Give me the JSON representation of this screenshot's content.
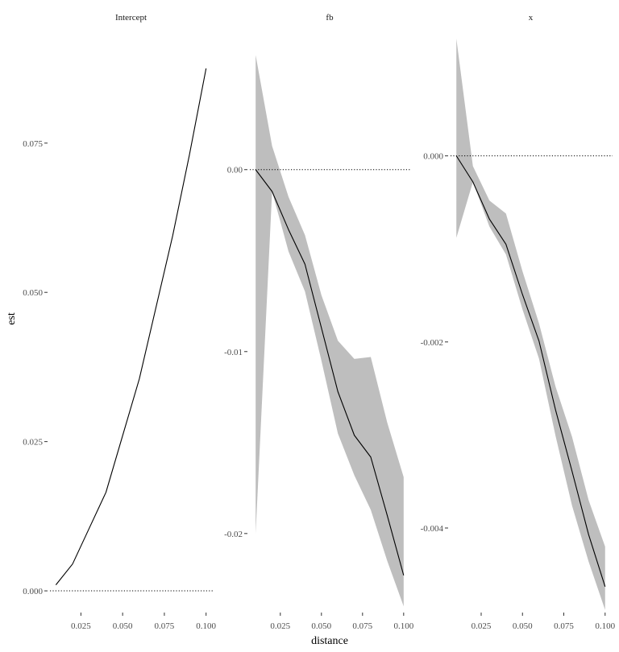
{
  "chart_data": {
    "type": "line",
    "xlabel": "distance",
    "ylabel": "est",
    "line_color": "#000000",
    "ribbon_color": "#bebebe",
    "reference_line": 0,
    "panels": [
      {
        "title": "Intercept",
        "x": [
          0.01,
          0.02,
          0.03,
          0.04,
          0.05,
          0.06,
          0.07,
          0.08,
          0.09,
          0.1
        ],
        "y": [
          0.001,
          0.0045,
          0.0105,
          0.0165,
          0.026,
          0.0355,
          0.0475,
          0.0595,
          0.073,
          0.0875
        ],
        "lower": null,
        "upper": null,
        "xlim": [
          0.0055,
          0.1045
        ],
        "ylim": [
          -0.0035,
          0.0925
        ],
        "xticks": [
          0.025,
          0.05,
          0.075,
          0.1
        ],
        "xtick_labels": [
          "0.025",
          "0.050",
          "0.075",
          "0.100"
        ],
        "yticks": [
          0,
          0.025,
          0.05,
          0.075
        ],
        "ytick_labels": [
          "0.000",
          "0.025",
          "0.050",
          "0.075"
        ]
      },
      {
        "title": "fb",
        "x": [
          0.01,
          0.02,
          0.03,
          0.04,
          0.05,
          0.06,
          0.07,
          0.08,
          0.09,
          0.1
        ],
        "y": [
          0.0,
          -0.0012,
          -0.0033,
          -0.0052,
          -0.0087,
          -0.0122,
          -0.0146,
          -0.0158,
          -0.019,
          -0.0223
        ],
        "lower": [
          -0.02,
          -0.0012,
          -0.0045,
          -0.0067,
          -0.0105,
          -0.0145,
          -0.0168,
          -0.0187,
          -0.0215,
          -0.024
        ],
        "upper": [
          0.0063,
          0.0013,
          -0.0015,
          -0.0036,
          -0.0069,
          -0.0094,
          -0.0104,
          -0.0103,
          -0.0139,
          -0.0169
        ],
        "xlim": [
          0.0055,
          0.1045
        ],
        "ylim": [
          -0.0243,
          0.0072
        ],
        "xticks": [
          0.025,
          0.05,
          0.075,
          0.1
        ],
        "xtick_labels": [
          "0.025",
          "0.050",
          "0.075",
          "0.100"
        ],
        "yticks": [
          0,
          -0.01,
          -0.02
        ],
        "ytick_labels": [
          "0.00",
          "-0.01",
          "-0.02"
        ]
      },
      {
        "title": "x",
        "x": [
          0.01,
          0.02,
          0.03,
          0.04,
          0.05,
          0.06,
          0.07,
          0.08,
          0.09,
          0.1
        ],
        "y": [
          0.0,
          -0.00028,
          -0.00068,
          -0.00095,
          -0.00149,
          -0.00199,
          -0.00273,
          -0.00339,
          -0.00407,
          -0.00463
        ],
        "lower": [
          -0.00088,
          -0.00028,
          -0.00076,
          -0.00106,
          -0.00165,
          -0.00218,
          -0.00301,
          -0.00376,
          -0.00436,
          -0.00488
        ],
        "upper": [
          0.00126,
          -0.00011,
          -0.00048,
          -0.00062,
          -0.00124,
          -0.0018,
          -0.00248,
          -0.00302,
          -0.0037,
          -0.0042
        ],
        "xlim": [
          0.0055,
          0.1045
        ],
        "ylim": [
          -0.0049,
          0.00126
        ],
        "xticks": [
          0.025,
          0.05,
          0.075,
          0.1
        ],
        "xtick_labels": [
          "0.025",
          "0.050",
          "0.075",
          "0.100"
        ],
        "yticks": [
          0,
          -0.002,
          -0.004
        ],
        "ytick_labels": [
          "0.000",
          "-0.002",
          "-0.004"
        ]
      }
    ]
  }
}
